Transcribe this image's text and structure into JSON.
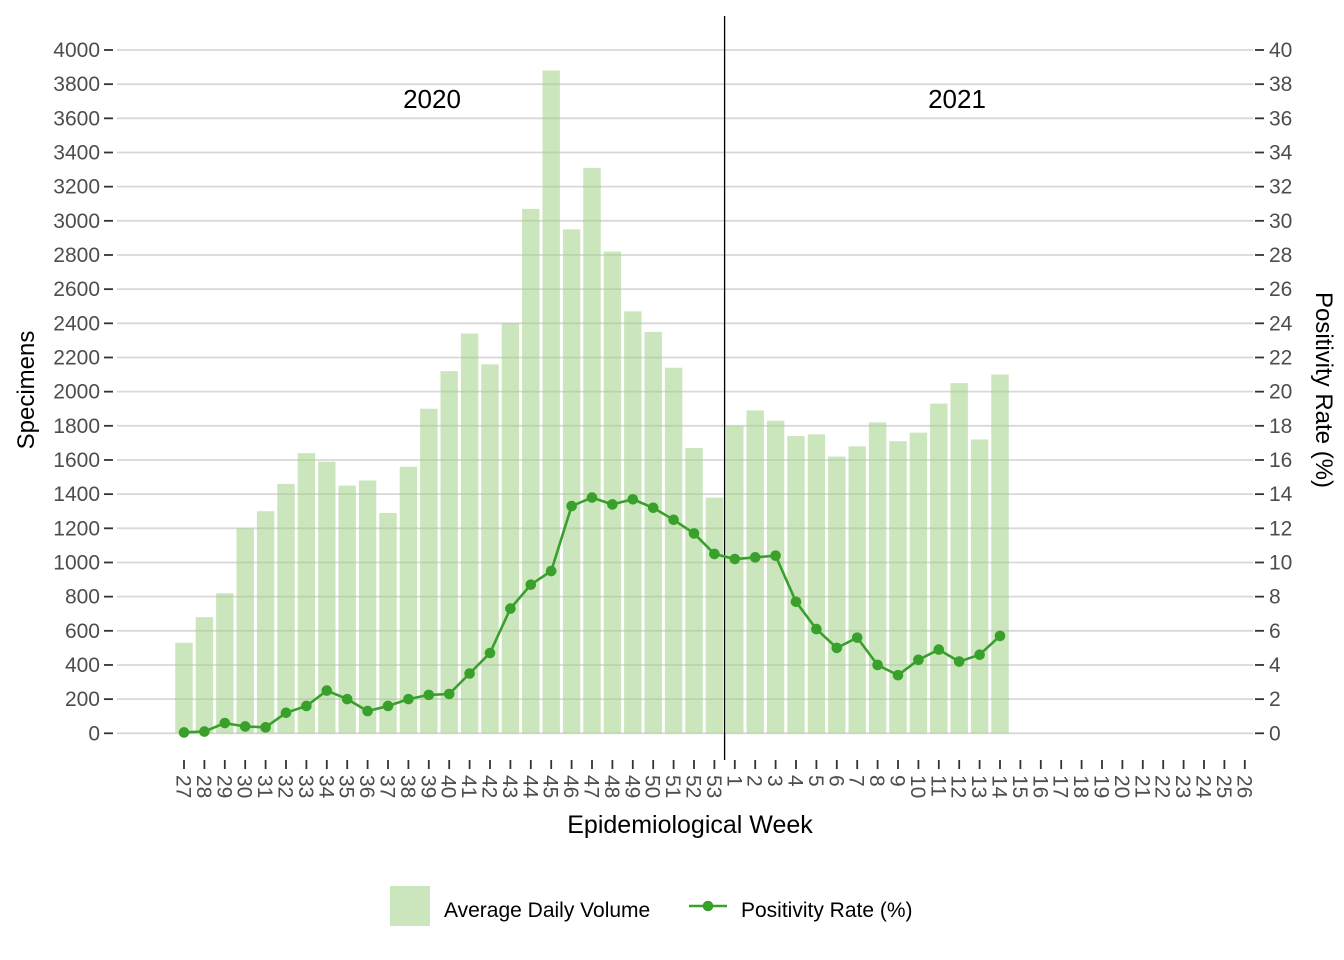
{
  "chart_data": {
    "type": "combo-bar-line",
    "title": "",
    "xlabel": "Epidemiological Week",
    "categories": [
      "27",
      "28",
      "29",
      "30",
      "31",
      "32",
      "33",
      "34",
      "35",
      "36",
      "37",
      "38",
      "39",
      "40",
      "41",
      "42",
      "43",
      "44",
      "45",
      "46",
      "47",
      "48",
      "49",
      "50",
      "51",
      "52",
      "53",
      "1",
      "2",
      "3",
      "4",
      "5",
      "6",
      "7",
      "8",
      "9",
      "10",
      "11",
      "12",
      "13",
      "14",
      "15",
      "16",
      "17",
      "18",
      "19",
      "20",
      "21",
      "22",
      "23",
      "24",
      "25",
      "26"
    ],
    "series": [
      {
        "name": "Average Daily Volume",
        "type": "bar",
        "axis": "left",
        "values": [
          530,
          680,
          820,
          1200,
          1300,
          1460,
          1640,
          1590,
          1450,
          1480,
          1290,
          1560,
          1900,
          2120,
          2340,
          2160,
          2400,
          3070,
          3880,
          2950,
          3310,
          2820,
          2470,
          2350,
          2140,
          1670,
          1380,
          1800,
          1890,
          1830,
          1740,
          1750,
          1620,
          1680,
          1820,
          1710,
          1760,
          1930,
          2050,
          1720,
          2100,
          null,
          null,
          null,
          null,
          null,
          null,
          null,
          null,
          null,
          null,
          null,
          null
        ]
      },
      {
        "name": "Positivity Rate (%)",
        "type": "line",
        "axis": "right",
        "values": [
          0.05,
          0.1,
          0.6,
          0.4,
          0.35,
          1.2,
          1.6,
          2.5,
          2.0,
          1.3,
          1.6,
          2.0,
          2.25,
          2.3,
          3.5,
          4.7,
          7.3,
          8.7,
          9.5,
          13.3,
          13.8,
          13.4,
          13.7,
          13.2,
          12.5,
          11.7,
          10.5,
          10.2,
          10.3,
          10.4,
          7.7,
          6.1,
          5.0,
          5.6,
          4.0,
          3.4,
          4.3,
          4.9,
          4.2,
          4.6,
          5.7,
          null,
          null,
          null,
          null,
          null,
          null,
          null,
          null,
          null,
          null,
          null,
          null
        ]
      }
    ],
    "left_axis": {
      "label": "Specimens",
      "min": 0,
      "max": 4000,
      "step": 200
    },
    "right_axis": {
      "label": "Positivity Rate (%)",
      "min": 0,
      "max": 40,
      "step": 2
    },
    "annotations": {
      "year_left": "2020",
      "year_right": "2021",
      "divider_after_category_index": 26
    },
    "grid": true,
    "legend_position": "bottom",
    "legend": {
      "bar_label": "Average Daily Volume",
      "line_label": "Positivity Rate (%)"
    }
  },
  "colors": {
    "background": "#ffffff",
    "grid": "#d8d8d8",
    "tick": "#333333",
    "tick_label": "#4d4d4d",
    "axis_title": "#000000",
    "bar_fill_solid": "#cbe5bc",
    "bar_fill_overlay": "rgba(160,208,134,0.55)",
    "line": "#38a02b",
    "divider": "#000000"
  }
}
